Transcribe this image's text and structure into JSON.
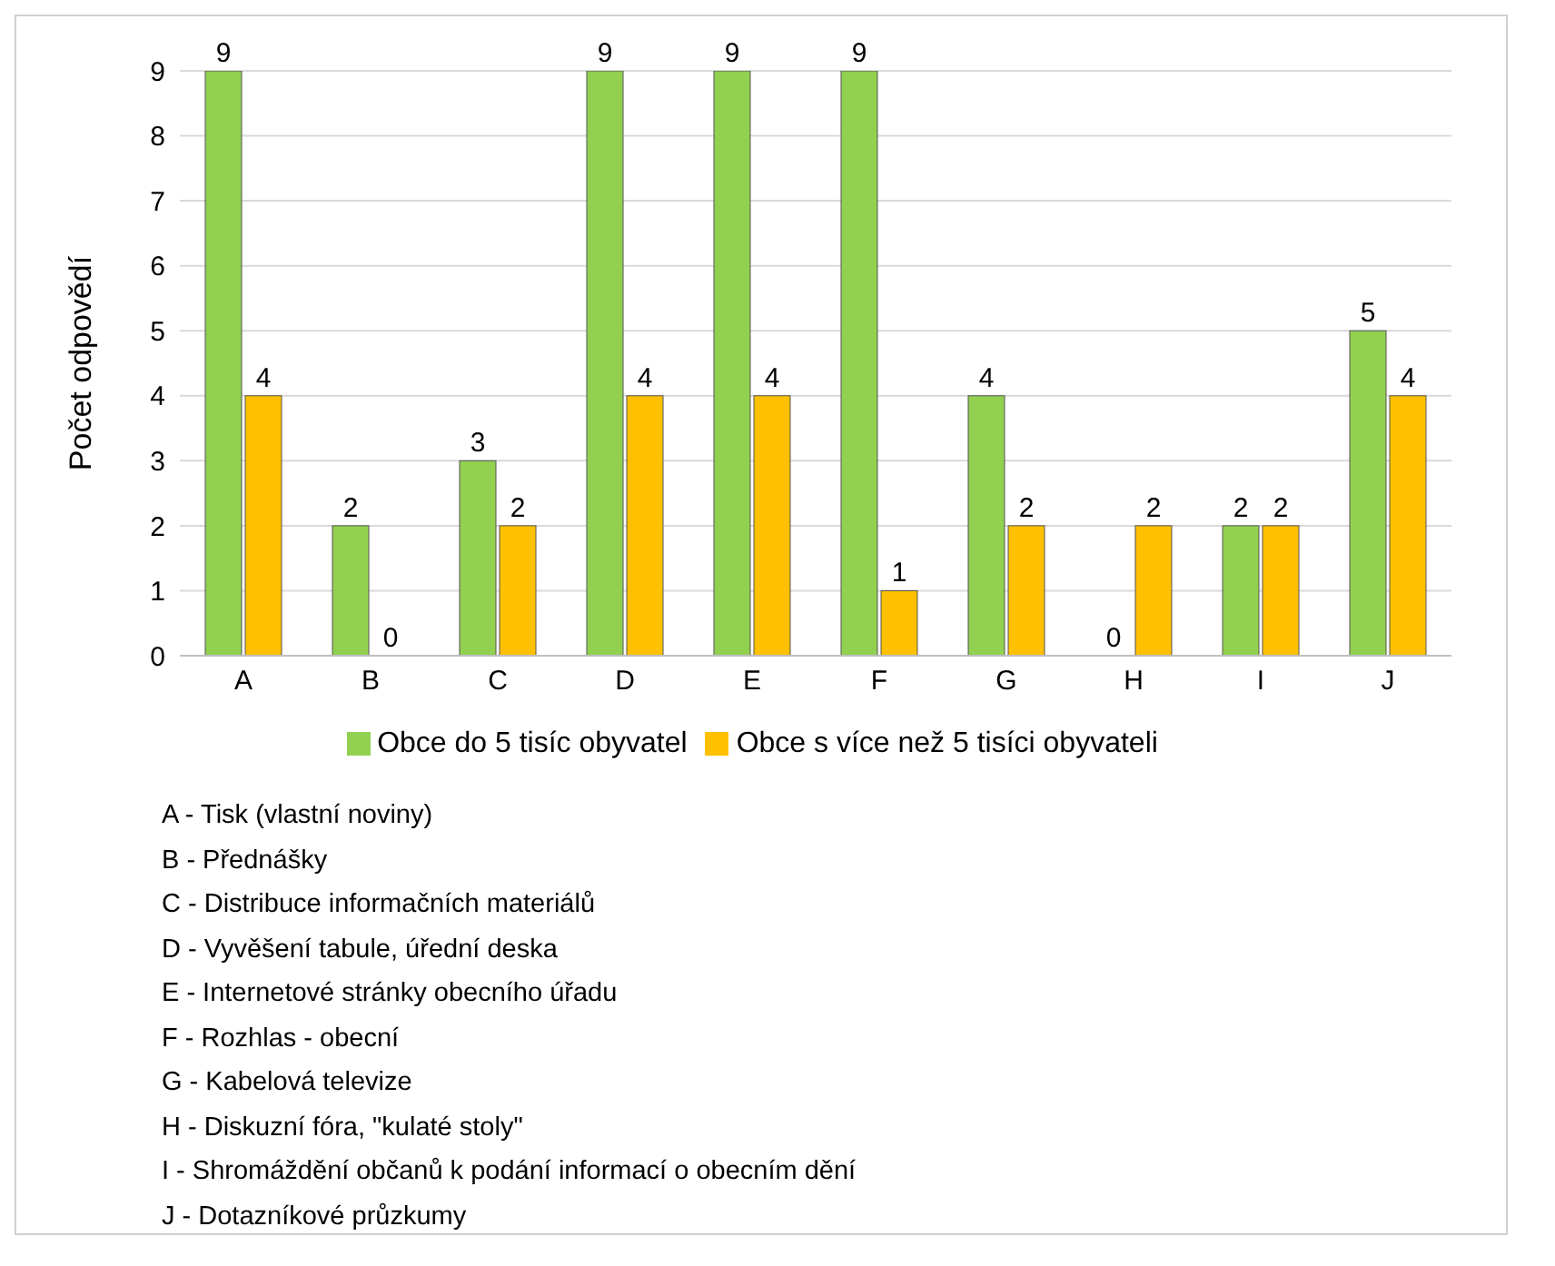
{
  "chart_data": {
    "type": "bar",
    "ylabel": "Počet odpovědí",
    "categories": [
      "A",
      "B",
      "C",
      "D",
      "E",
      "F",
      "G",
      "H",
      "I",
      "J"
    ],
    "series": [
      {
        "name": "Obce do 5 tisíc obyvatel",
        "color": "#92d050",
        "values": [
          9,
          2,
          3,
          9,
          9,
          9,
          4,
          0,
          2,
          5
        ]
      },
      {
        "name": "Obce s více než 5 tisíci obyvateli",
        "color": "#ffc000",
        "values": [
          4,
          0,
          2,
          4,
          4,
          1,
          2,
          2,
          2,
          4
        ]
      }
    ],
    "ylim": [
      0,
      9
    ],
    "yticks": [
      0,
      1,
      2,
      3,
      4,
      5,
      6,
      7,
      8,
      9
    ],
    "grid": "y",
    "legend": "bottom",
    "data_labels": true,
    "annotations": [
      "A - Tisk (vlastní noviny)",
      "B - Přednášky",
      "C - Distribuce informačních materiálů",
      "D - Vyvěšení tabule, úřední deska",
      "E - Internetové stránky obecního úřadu",
      "F - Rozhlas - obecní",
      "G - Kabelová televize",
      "H - Diskuzní fóra, \"kulaté stoly\"",
      "I - Shromáždění občanů k podání informací o obecním dění",
      "J - Dotazníkové průzkumy"
    ]
  }
}
